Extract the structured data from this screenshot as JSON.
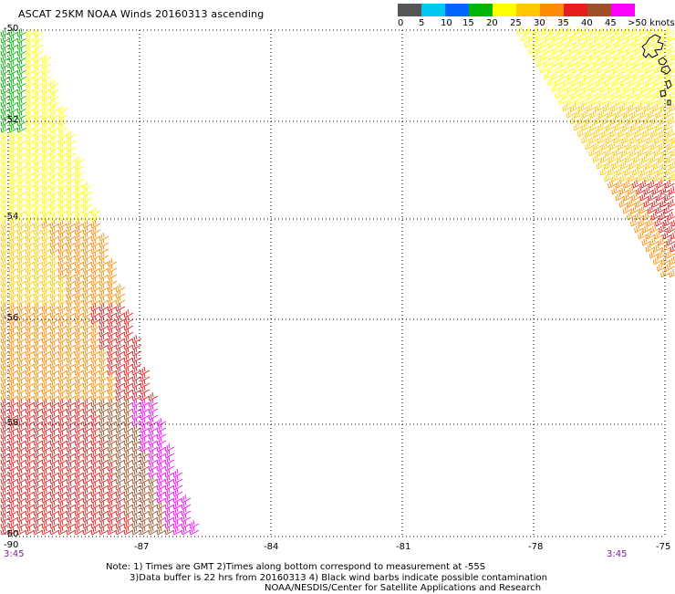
{
  "title": "ASCAT 25KM NOAA Winds 20160313 ascending",
  "legend": {
    "colors": [
      "#555555",
      "#00c8f0",
      "#0064ff",
      "#00b400",
      "#ffff00",
      "#ffc800",
      "#ff8c00",
      "#e61e1e",
      "#a05028",
      "#ff00ff",
      "#8c00c8"
    ],
    "labels": [
      "0",
      "5",
      "10",
      "15",
      "20",
      "25",
      "30",
      "35",
      "40",
      "45",
      ">50 knots"
    ]
  },
  "lat_labels": [
    "-50",
    "-52",
    "-54",
    "-56",
    "-58",
    "-60"
  ],
  "lon_labels": [
    "-90",
    "-87",
    "-84",
    "-81",
    "-78",
    "-75"
  ],
  "time_labels": [
    "3:45",
    "3:45"
  ],
  "notes": [
    "Note: 1) Times are GMT 2)Times along bottom correspond to measurement at -55S",
    "3)Data buffer is 22 hrs from 20160313 4) Black wind barbs indicate possible contamination",
    "NOAA/NESDIS/Center for Satellite Applications and Research"
  ]
}
